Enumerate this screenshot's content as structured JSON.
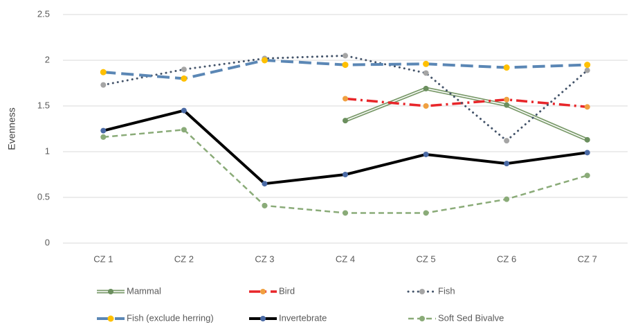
{
  "chart_data": {
    "type": "line",
    "y_label": "Evenness",
    "categories": [
      "CZ 1",
      "CZ 2",
      "CZ 3",
      "CZ 4",
      "CZ 5",
      "CZ 6",
      "CZ 7"
    ],
    "ylim": [
      0,
      2.5
    ],
    "yticks": [
      0,
      0.5,
      1,
      1.5,
      2,
      2.5
    ],
    "grid": true,
    "legend": "bottom",
    "series": [
      {
        "name": "Mammal",
        "color": "#7a9a6a",
        "marker_color": "#6b8f5e",
        "dash": "double",
        "values": [
          null,
          null,
          null,
          1.34,
          1.69,
          1.51,
          1.13
        ]
      },
      {
        "name": "Bird",
        "color": "#e8262a",
        "marker_color": "#f0a040",
        "dash": "dashdot",
        "values": [
          null,
          null,
          null,
          1.58,
          1.5,
          1.57,
          1.49
        ]
      },
      {
        "name": "Fish",
        "color": "#44546a",
        "marker_color": "#a5a5a5",
        "dash": "dot",
        "values": [
          1.73,
          1.9,
          2.02,
          2.05,
          1.86,
          1.12,
          1.89
        ]
      },
      {
        "name": "Fish (exclude herring)",
        "color": "#5b87b5",
        "marker_color": "#ffc000",
        "dash": "dash",
        "values": [
          1.87,
          1.8,
          2.0,
          1.95,
          1.96,
          1.92,
          1.95
        ]
      },
      {
        "name": "Invertebrate",
        "color": "#000000",
        "marker_color": "#4a6aa5",
        "dash": "solid",
        "values": [
          1.23,
          1.45,
          0.65,
          0.75,
          0.97,
          0.87,
          0.99
        ]
      },
      {
        "name": "Soft Sed Bivalve",
        "color": "#8aab78",
        "marker_color": "#8aab78",
        "dash": "dash-thin",
        "values": [
          1.16,
          1.24,
          0.41,
          0.33,
          0.33,
          0.48,
          0.74
        ]
      }
    ]
  }
}
